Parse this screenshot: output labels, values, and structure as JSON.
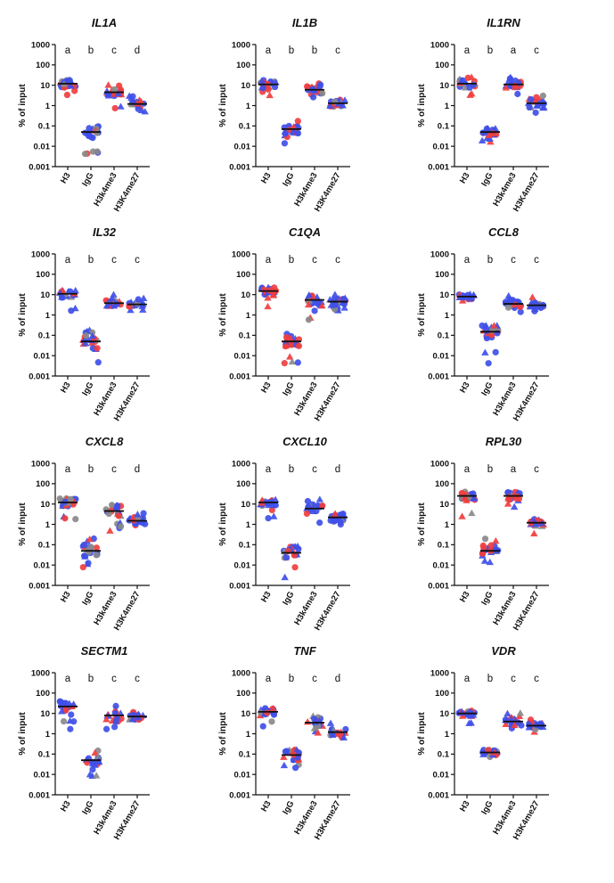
{
  "legend": {
    "colors": {
      "red": "#f03e3e",
      "blue": "#3f4fe8",
      "gray": "#8a8a8a"
    }
  },
  "chart_data": [
    {
      "type": "scatter",
      "title": "IL1A",
      "ylabel": "% of input",
      "scale": "log",
      "ylim": [
        0.001,
        1000
      ],
      "yticks": [
        "0.001",
        "0.01",
        "0.1",
        "1",
        "10",
        "100",
        "1000"
      ],
      "categories": [
        "H3",
        "IgG",
        "H3k4me3",
        "H3K4me27"
      ],
      "letters": [
        "a",
        "b",
        "c",
        "d"
      ],
      "medians": [
        12,
        0.05,
        4.5,
        1.2
      ],
      "spread": [
        [
          1.5,
          25
        ],
        [
          0.004,
          0.2
        ],
        [
          0.6,
          12
        ],
        [
          0.5,
          4
        ]
      ]
    },
    {
      "type": "scatter",
      "title": "IL1B",
      "ylabel": "% of input",
      "scale": "log",
      "ylim": [
        0.001,
        1000
      ],
      "yticks": [
        "0.001",
        "0.01",
        "0.1",
        "1",
        "10",
        "100",
        "1000"
      ],
      "categories": [
        "H3",
        "IgG",
        "H3k4me3",
        "H3K4me27"
      ],
      "letters": [
        "a",
        "b",
        "b",
        "c"
      ],
      "medians": [
        11,
        0.07,
        6,
        1.3
      ],
      "spread": [
        [
          1.5,
          18
        ],
        [
          0.01,
          0.2
        ],
        [
          1.5,
          15
        ],
        [
          0.4,
          4
        ]
      ]
    },
    {
      "type": "scatter",
      "title": "IL1RN",
      "ylabel": "% of input",
      "scale": "log",
      "ylim": [
        0.001,
        1000
      ],
      "yticks": [
        "0.001",
        "0.01",
        "0.1",
        "1",
        "10",
        "100",
        "1000"
      ],
      "categories": [
        "H3",
        "IgG",
        "H3k4me3",
        "H3K4me27"
      ],
      "letters": [
        "a",
        "b",
        "a",
        "c"
      ],
      "medians": [
        12,
        0.05,
        11,
        1.3
      ],
      "spread": [
        [
          1.5,
          25
        ],
        [
          0.012,
          0.12
        ],
        [
          3.5,
          25
        ],
        [
          0.35,
          8
        ]
      ]
    },
    {
      "type": "scatter",
      "title": "IL32",
      "ylabel": "% of input",
      "scale": "log",
      "ylim": [
        0.001,
        1000
      ],
      "yticks": [
        "0.001",
        "0.01",
        "0.1",
        "1",
        "10",
        "100",
        "1000"
      ],
      "categories": [
        "H3",
        "IgG",
        "H3k4me3",
        "H3K4me27"
      ],
      "letters": [
        "a",
        "b",
        "c",
        "c"
      ],
      "medians": [
        11,
        0.05,
        3.8,
        3.3
      ],
      "spread": [
        [
          1.5,
          20
        ],
        [
          0.002,
          0.3
        ],
        [
          0.9,
          10
        ],
        [
          1.5,
          7
        ]
      ]
    },
    {
      "type": "scatter",
      "title": "C1QA",
      "ylabel": "% of input",
      "scale": "log",
      "ylim": [
        0.001,
        1000
      ],
      "yticks": [
        "0.001",
        "0.01",
        "0.1",
        "1",
        "10",
        "100",
        "1000"
      ],
      "categories": [
        "H3",
        "IgG",
        "H3k4me3",
        "H3K4me27"
      ],
      "letters": [
        "a",
        "b",
        "c",
        "c"
      ],
      "medians": [
        15,
        0.05,
        5.5,
        4.5
      ],
      "spread": [
        [
          1.5,
          25
        ],
        [
          0.004,
          0.15
        ],
        [
          0.4,
          25
        ],
        [
          1.5,
          15
        ]
      ]
    },
    {
      "type": "scatter",
      "title": "CCL8",
      "ylabel": "% of input",
      "scale": "log",
      "ylim": [
        0.001,
        1000
      ],
      "yticks": [
        "0.001",
        "0.01",
        "0.1",
        "1",
        "10",
        "100",
        "1000"
      ],
      "categories": [
        "H3",
        "IgG",
        "H3k4me3",
        "H3K4me27"
      ],
      "letters": [
        "a",
        "b",
        "c",
        "c"
      ],
      "medians": [
        8,
        0.15,
        3.5,
        3
      ],
      "spread": [
        [
          2,
          12
        ],
        [
          0.004,
          0.3
        ],
        [
          0.7,
          15
        ],
        [
          1.5,
          8
        ]
      ]
    },
    {
      "type": "scatter",
      "title": "CXCL8",
      "ylabel": "% of input",
      "scale": "log",
      "ylim": [
        0.001,
        1000
      ],
      "yticks": [
        "0.001",
        "0.01",
        "0.1",
        "1",
        "10",
        "100",
        "1000"
      ],
      "categories": [
        "H3",
        "IgG",
        "H3k4me3",
        "H3K4me27"
      ],
      "letters": [
        "a",
        "b",
        "c",
        "d"
      ],
      "medians": [
        12,
        0.05,
        4.5,
        1.5
      ],
      "spread": [
        [
          1.5,
          20
        ],
        [
          0.004,
          0.2
        ],
        [
          0.4,
          15
        ],
        [
          0.5,
          5
        ]
      ]
    },
    {
      "type": "scatter",
      "title": "CXCL10",
      "ylabel": "% of input",
      "scale": "log",
      "ylim": [
        0.001,
        1000
      ],
      "yticks": [
        "0.001",
        "0.01",
        "0.1",
        "1",
        "10",
        "100",
        "1000"
      ],
      "categories": [
        "H3",
        "IgG",
        "H3k4me3",
        "H3K4me27"
      ],
      "letters": [
        "a",
        "b",
        "c",
        "d"
      ],
      "medians": [
        12,
        0.04,
        6,
        2.2
      ],
      "spread": [
        [
          2,
          20
        ],
        [
          0.002,
          0.2
        ],
        [
          0.5,
          20
        ],
        [
          0.4,
          7
        ]
      ]
    },
    {
      "type": "scatter",
      "title": "RPL30",
      "ylabel": "% of input",
      "scale": "log",
      "ylim": [
        0.001,
        1000
      ],
      "yticks": [
        "0.001",
        "0.01",
        "0.1",
        "1",
        "10",
        "100",
        "1000"
      ],
      "categories": [
        "H3",
        "IgG",
        "H3k4me3",
        "H3K4me27"
      ],
      "letters": [
        "a",
        "b",
        "a",
        "c"
      ],
      "medians": [
        25,
        0.05,
        25,
        1.2
      ],
      "spread": [
        [
          1.5,
          40
        ],
        [
          0.005,
          0.25
        ],
        [
          3,
          80
        ],
        [
          0.3,
          4
        ]
      ]
    },
    {
      "type": "scatter",
      "title": "SECTM1",
      "ylabel": "% of input",
      "scale": "log",
      "ylim": [
        0.001,
        1000
      ],
      "yticks": [
        "0.001",
        "0.01",
        "0.1",
        "1",
        "10",
        "100",
        "1000"
      ],
      "categories": [
        "H3",
        "IgG",
        "H3k4me3",
        "H3K4me27"
      ],
      "letters": [
        "a",
        "b",
        "c",
        "c"
      ],
      "medians": [
        22,
        0.05,
        8,
        7
      ],
      "spread": [
        [
          1.5,
          40
        ],
        [
          0.005,
          0.15
        ],
        [
          0.5,
          30
        ],
        [
          3,
          30
        ]
      ]
    },
    {
      "type": "scatter",
      "title": "TNF",
      "ylabel": "% of input",
      "scale": "log",
      "ylim": [
        0.001,
        1000
      ],
      "yticks": [
        "0.001",
        "0.01",
        "0.1",
        "1",
        "10",
        "100",
        "1000"
      ],
      "categories": [
        "H3",
        "IgG",
        "H3k4me3",
        "H3K4me27"
      ],
      "letters": [
        "a",
        "b",
        "c",
        "d"
      ],
      "medians": [
        12,
        0.09,
        3.5,
        1.2
      ],
      "spread": [
        [
          1.5,
          18
        ],
        [
          0.005,
          0.2
        ],
        [
          0.8,
          12
        ],
        [
          0.5,
          4
        ]
      ]
    },
    {
      "type": "scatter",
      "title": "VDR",
      "ylabel": "% of input",
      "scale": "log",
      "ylim": [
        0.001,
        1000
      ],
      "yticks": [
        "0.001",
        "0.01",
        "0.1",
        "1",
        "10",
        "100",
        "1000"
      ],
      "categories": [
        "H3",
        "IgG",
        "H3k4me3",
        "H3K4me27"
      ],
      "letters": [
        "a",
        "b",
        "c",
        "c"
      ],
      "medians": [
        10,
        0.12,
        4,
        2.5
      ],
      "spread": [
        [
          2.5,
          15
        ],
        [
          0.03,
          0.25
        ],
        [
          0.9,
          15
        ],
        [
          1.2,
          6
        ]
      ]
    }
  ]
}
